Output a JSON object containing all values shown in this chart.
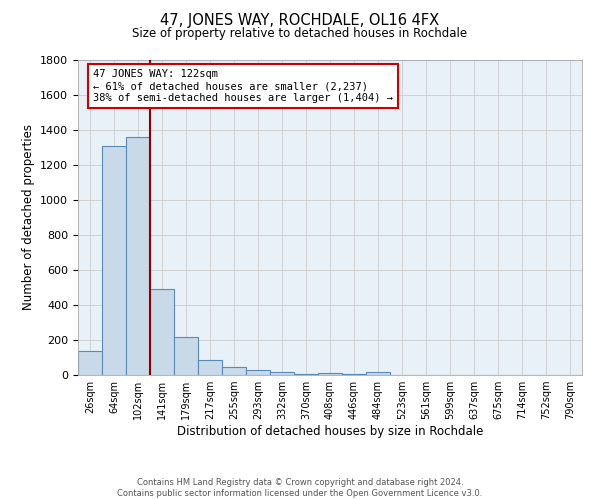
{
  "title": "47, JONES WAY, ROCHDALE, OL16 4FX",
  "subtitle": "Size of property relative to detached houses in Rochdale",
  "xlabel": "Distribution of detached houses by size in Rochdale",
  "ylabel": "Number of detached properties",
  "footer_line1": "Contains HM Land Registry data © Crown copyright and database right 2024.",
  "footer_line2": "Contains public sector information licensed under the Open Government Licence v3.0.",
  "bin_labels": [
    "26sqm",
    "64sqm",
    "102sqm",
    "141sqm",
    "179sqm",
    "217sqm",
    "255sqm",
    "293sqm",
    "332sqm",
    "370sqm",
    "408sqm",
    "446sqm",
    "484sqm",
    "523sqm",
    "561sqm",
    "599sqm",
    "637sqm",
    "675sqm",
    "714sqm",
    "752sqm",
    "790sqm"
  ],
  "bar_values": [
    140,
    1310,
    1360,
    490,
    220,
    85,
    47,
    30,
    18,
    5,
    13,
    5,
    18,
    0,
    0,
    0,
    0,
    0,
    0,
    0,
    0
  ],
  "bar_color": "#c8d9e8",
  "bar_edge_color": "#5a8ab5",
  "bg_color": "#e8f0f8",
  "grid_color": "#cccccc",
  "vline_bin_index": 2,
  "property_line_label": "47 JONES WAY: 122sqm",
  "annotation_line1": "← 61% of detached houses are smaller (2,237)",
  "annotation_line2": "38% of semi-detached houses are larger (1,404) →",
  "annotation_box_facecolor": "#ffffff",
  "annotation_box_edgecolor": "#cc0000",
  "vline_color": "#8b0000",
  "ylim": [
    0,
    1800
  ],
  "yticks": [
    0,
    200,
    400,
    600,
    800,
    1000,
    1200,
    1400,
    1600,
    1800
  ]
}
